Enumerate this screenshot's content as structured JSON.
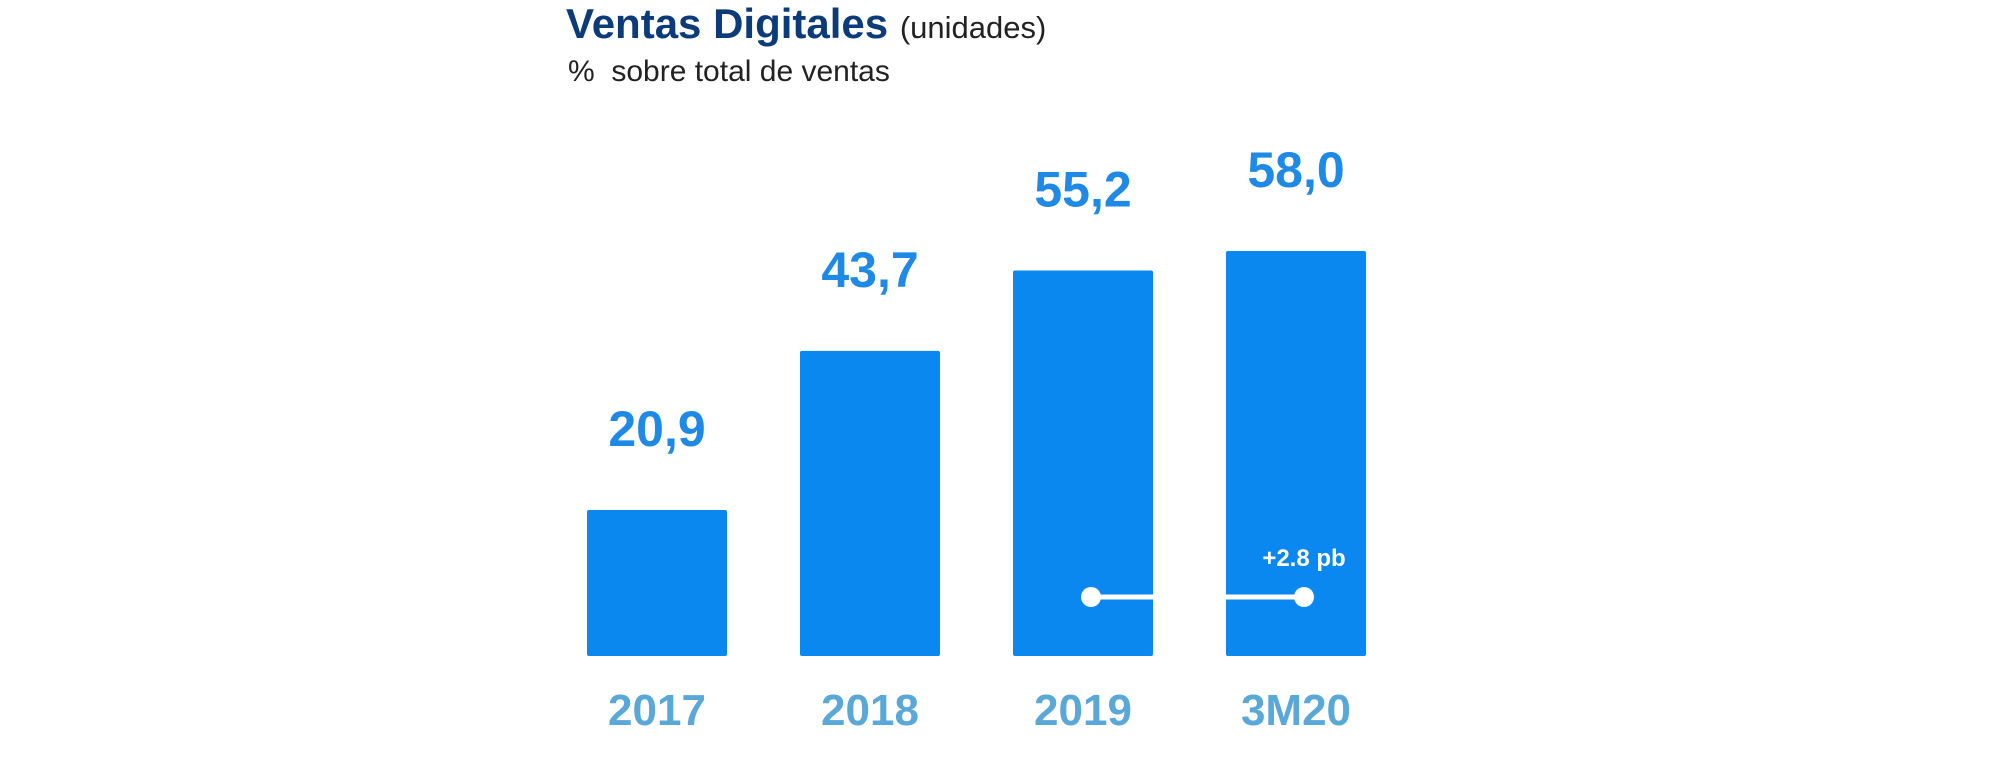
{
  "chart_data": {
    "type": "bar",
    "title": "Ventas Digitales",
    "title_unit": "(unidades)",
    "subtitle": "%  sobre total de ventas",
    "categories": [
      "2017",
      "2018",
      "2019",
      "3M20"
    ],
    "values": [
      20.9,
      43.7,
      55.2,
      58.0
    ],
    "data_labels": [
      "20,9",
      "43,7",
      "55,2",
      "58,0"
    ],
    "ylim": [
      0,
      58.0
    ],
    "grid": false,
    "legend": "none",
    "annotation": {
      "text": "+2.8 pb",
      "from_category": "2019",
      "to_category": "3M20"
    },
    "colors": {
      "bar": "#0a88f0",
      "value_label": "#1f8ae6",
      "category_label": "#5aa8d8",
      "title": "#0b3b78",
      "annotation": "#ffffff"
    }
  }
}
